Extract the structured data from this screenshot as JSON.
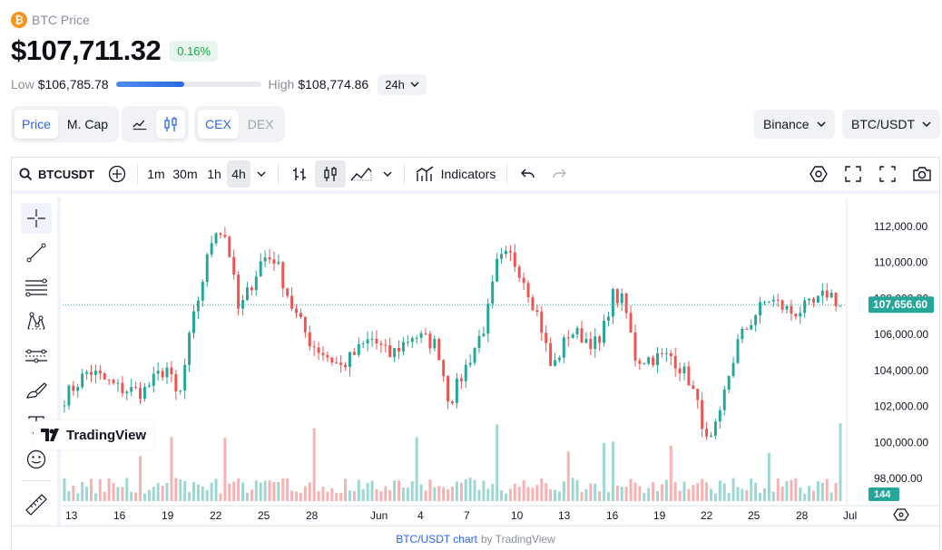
{
  "header": {
    "coin_name": "BTC Price",
    "logo_glyph": "₿",
    "price": "$107,711.32",
    "change": "0.16%",
    "low_label": "Low",
    "low_value": "$106,785.78",
    "high_label": "High",
    "high_value": "$108,774.86",
    "range_position_fraction": 0.47,
    "period": "24h"
  },
  "toggles": {
    "metric": [
      "Price",
      "M. Cap"
    ],
    "metric_active": "Price",
    "market": [
      "CEX",
      "DEX"
    ],
    "market_active": "CEX"
  },
  "selectors": {
    "exchange": "Binance",
    "pair": "BTC/USDT"
  },
  "toolbar": {
    "symbol": "BTCUSDT",
    "intervals": [
      "1m",
      "30m",
      "1h",
      "4h"
    ],
    "interval_active": "4h",
    "indicators_label": "Indicators"
  },
  "left_tools": [
    "crosshair-icon",
    "trend-line-icon",
    "fib-retracement-icon",
    "pattern-icon",
    "prediction-icon",
    "brush-icon",
    "text-icon",
    "emoji-icon",
    "ruler-icon"
  ],
  "chart_data": {
    "type": "candlestick",
    "symbol": "BTCUSDT",
    "interval": "4h",
    "last_price": 107656.6,
    "last_price_label": "107,656.60",
    "volume_label": "144",
    "ylim": [
      97000,
      113000
    ],
    "y_ticks": [
      112000,
      110000,
      108000,
      106000,
      104000,
      102000,
      100000,
      98000
    ],
    "y_tick_labels": [
      "112,000.00",
      "110,000.00",
      "108,000.00",
      "106,000.00",
      "104,000.00",
      "102,000.00",
      "100,000.00",
      "98,000.00"
    ],
    "x_tick_labels": [
      "13",
      "16",
      "19",
      "22",
      "25",
      "28",
      "Jun",
      "4",
      "7",
      "10",
      "13",
      "16",
      "19",
      "22",
      "25",
      "28",
      "Jul"
    ],
    "close_path": [
      [
        0,
        102500
      ],
      [
        4,
        104000
      ],
      [
        9,
        103000
      ],
      [
        13,
        102800
      ],
      [
        17,
        104200
      ],
      [
        19,
        102200
      ],
      [
        21,
        106200
      ],
      [
        25,
        112000
      ],
      [
        27,
        111400
      ],
      [
        29,
        107200
      ],
      [
        33,
        110300
      ],
      [
        35,
        110200
      ],
      [
        38,
        107400
      ],
      [
        41,
        105500
      ],
      [
        46,
        104200
      ],
      [
        51,
        105800
      ],
      [
        54,
        104800
      ],
      [
        58,
        106000
      ],
      [
        62,
        105400
      ],
      [
        64,
        102200
      ],
      [
        70,
        106600
      ],
      [
        72,
        110000
      ],
      [
        74,
        110400
      ],
      [
        76,
        109400
      ],
      [
        79,
        106800
      ],
      [
        81,
        104000
      ],
      [
        84,
        106200
      ],
      [
        89,
        105400
      ],
      [
        91,
        108200
      ],
      [
        93,
        107800
      ],
      [
        95,
        104600
      ],
      [
        101,
        104800
      ],
      [
        104,
        103400
      ],
      [
        106,
        101200
      ],
      [
        107,
        99600
      ],
      [
        109,
        101400
      ],
      [
        110,
        103200
      ],
      [
        112,
        105600
      ],
      [
        115,
        107200
      ],
      [
        117,
        108000
      ],
      [
        121,
        107200
      ],
      [
        125,
        107700
      ],
      [
        127,
        108400
      ],
      [
        129,
        107600
      ]
    ]
  },
  "footer": {
    "link_text": "BTC/USDT chart",
    "suffix_text": "by TradingView"
  },
  "watermark": "TradingView"
}
